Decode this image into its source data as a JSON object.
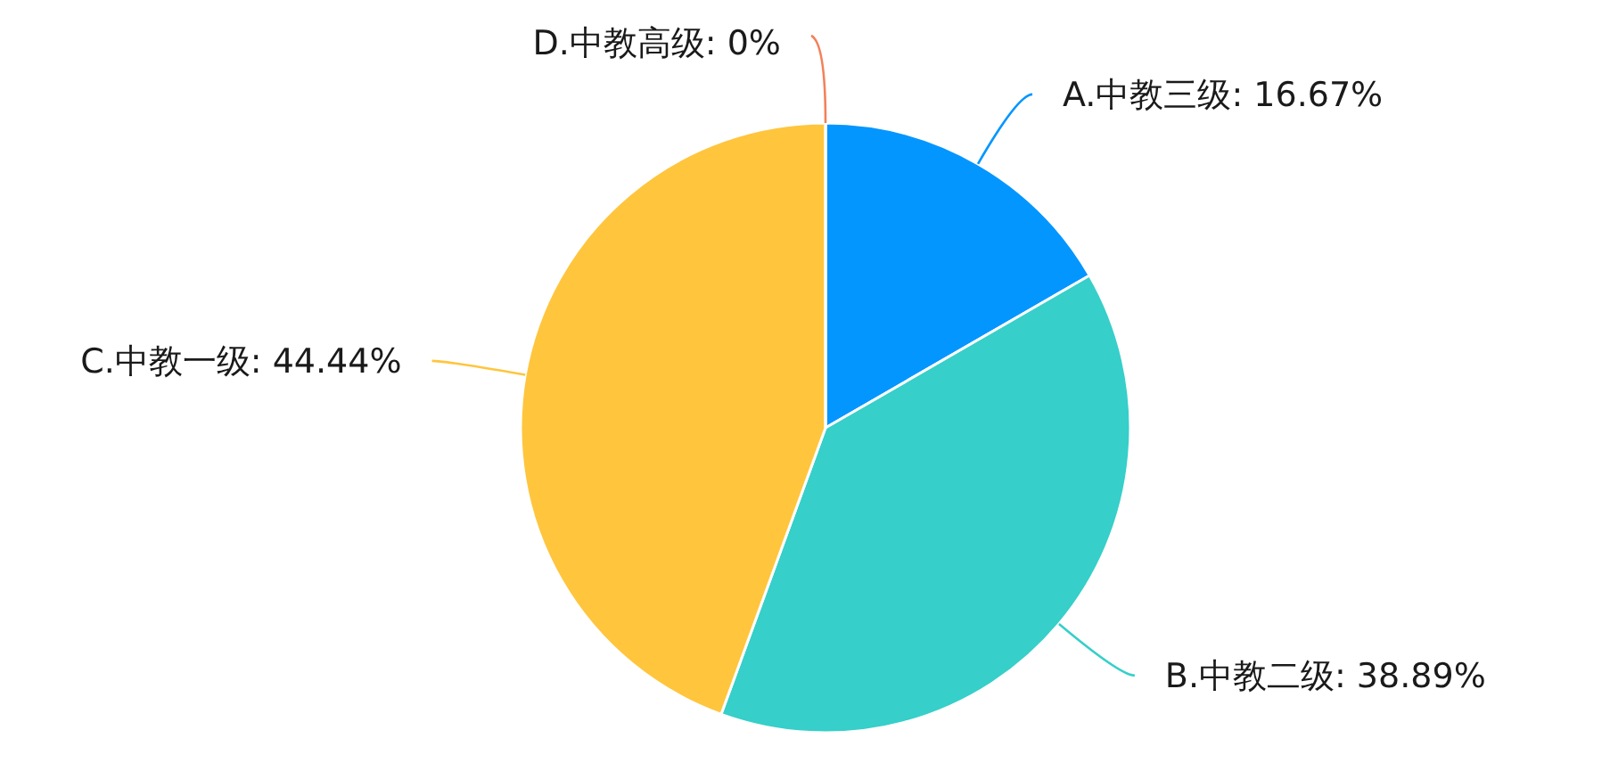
{
  "chart_data": {
    "type": "pie",
    "categories": [
      "A.中教三级: 16.67%",
      "B.中教二级: 38.89%",
      "C.中教一级: 44.44%",
      "D.中教高级: 0%"
    ],
    "values": [
      16.67,
      38.89,
      44.44,
      0
    ],
    "colors": [
      "#0396ff",
      "#36cfc9",
      "#ffc53d",
      "#f4805a"
    ]
  }
}
